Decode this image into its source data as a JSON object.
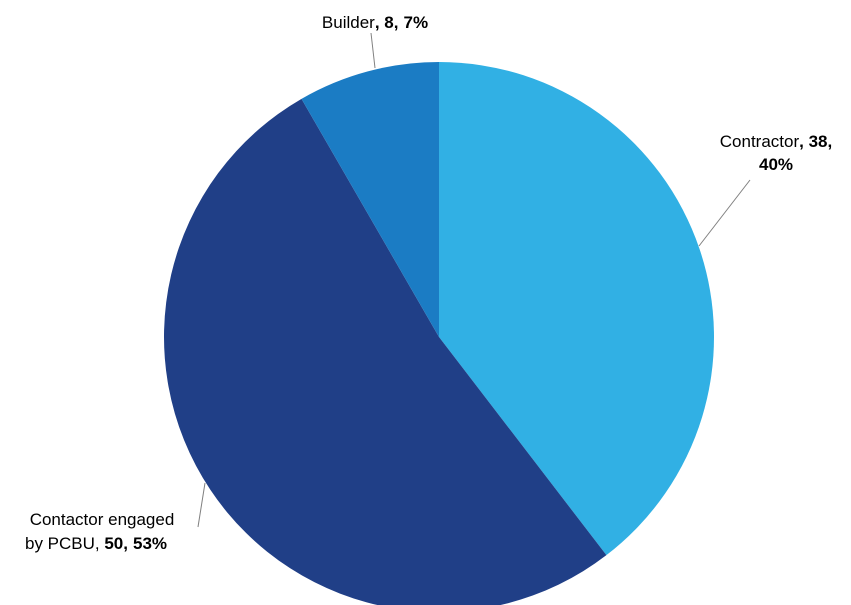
{
  "chart_data": {
    "type": "pie",
    "slices": [
      {
        "name": "Contractor",
        "value": 38,
        "percent": "40%",
        "color": "#31B0E4"
      },
      {
        "name": "Contactor engaged by PCBU",
        "value": 50,
        "percent": "53%",
        "color": "#203F87"
      },
      {
        "name": "Builder",
        "value": 8,
        "percent": "7%",
        "color": "#1B7CC4"
      }
    ],
    "data_labels": {
      "contractor": {
        "name": "Contractor",
        "sep": ", ",
        "value": "38,",
        "percent": "40%"
      },
      "pcbu": {
        "line1": "Contactor engaged",
        "line2": "by PCBU, ",
        "value": "50,",
        "percent": "53%"
      },
      "builder": {
        "name": "Builder",
        "sep": ", ",
        "value": "8,",
        "percent": "7%"
      }
    },
    "legend": "none",
    "leader_line_color": "#808080"
  }
}
